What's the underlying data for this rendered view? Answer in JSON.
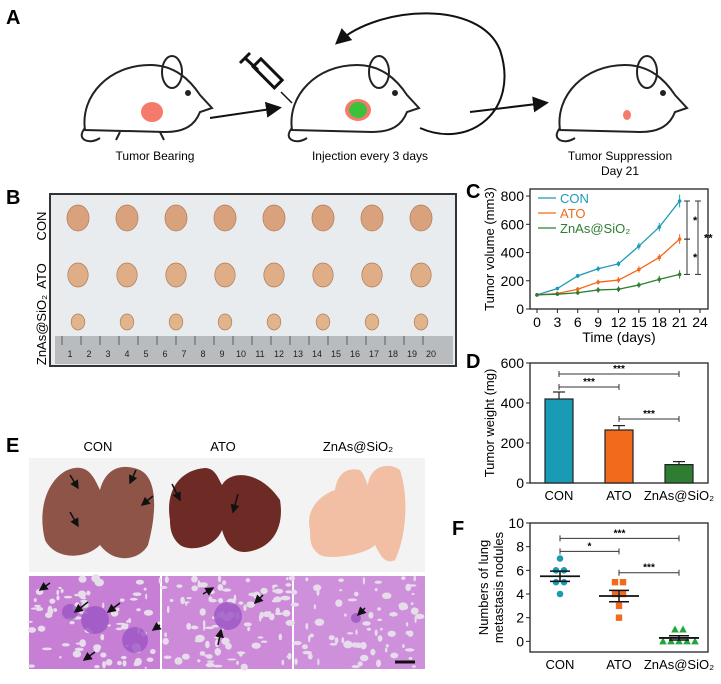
{
  "panels": {
    "A": {
      "label": "A",
      "steps": [
        "Tumor Bearing",
        "Injection every 3 days",
        "Tumor Suppression",
        "Day 21"
      ]
    },
    "B": {
      "label": "B",
      "rows": [
        "CON",
        "ATO",
        "ZnAs@SiO₂"
      ],
      "ruler_numbers": [
        "1",
        "2",
        "3",
        "4",
        "5",
        "6",
        "7",
        "8",
        "9",
        "10",
        "11",
        "12",
        "13",
        "14",
        "15",
        "16",
        "17",
        "18",
        "19",
        "20"
      ]
    },
    "E": {
      "label": "E",
      "columns": [
        "CON",
        "ATO",
        "ZnAs@SiO₂"
      ]
    }
  },
  "colors": {
    "CON": "#1a9bb5",
    "ATO": "#f26a1b",
    "ZnAs": "#2e7d32"
  },
  "chart_data": [
    {
      "id": "C",
      "label": "C",
      "type": "line",
      "xlabel": "Time (days)",
      "ylabel": "Tumor volume (mm3)",
      "x": [
        0,
        3,
        6,
        9,
        12,
        15,
        18,
        21
      ],
      "xticks": [
        "0",
        "3",
        "6",
        "9",
        "12",
        "15",
        "18",
        "21",
        "24"
      ],
      "yticks": [
        "0",
        "200",
        "400",
        "600",
        "800"
      ],
      "xlim": [
        0,
        24
      ],
      "ylim": [
        0,
        850
      ],
      "legend": "top-left",
      "series": [
        {
          "name": "CON",
          "values": [
            100,
            145,
            235,
            285,
            320,
            445,
            580,
            765
          ],
          "err": [
            12,
            12,
            15,
            18,
            18,
            25,
            30,
            45
          ]
        },
        {
          "name": "ATO",
          "values": [
            100,
            110,
            140,
            190,
            205,
            280,
            365,
            495
          ],
          "err": [
            12,
            12,
            15,
            18,
            20,
            22,
            25,
            35
          ]
        },
        {
          "name": "ZnAs@SiO₂",
          "values": [
            100,
            105,
            115,
            135,
            140,
            170,
            210,
            245
          ],
          "err": [
            12,
            12,
            15,
            20,
            20,
            20,
            25,
            30
          ]
        }
      ],
      "significance": [
        {
          "between": [
            "CON",
            "ATO"
          ],
          "text": "*"
        },
        {
          "between": [
            "ATO",
            "ZnAs@SiO₂"
          ],
          "text": "*"
        },
        {
          "between": [
            "CON",
            "ZnAs@SiO₂"
          ],
          "text": "**"
        }
      ]
    },
    {
      "id": "D",
      "label": "D",
      "type": "bar",
      "ylabel": "Tumor weight (mg)",
      "categories": [
        "CON",
        "ATO",
        "ZnAs@SiO₂"
      ],
      "values": [
        420,
        265,
        92
      ],
      "err": [
        35,
        22,
        15
      ],
      "yticks": [
        "0",
        "200",
        "400",
        "600"
      ],
      "ylim": [
        0,
        600
      ],
      "significance": [
        {
          "between": [
            0,
            1
          ],
          "text": "***",
          "level": 480
        },
        {
          "between": [
            0,
            2
          ],
          "text": "***",
          "level": 545
        },
        {
          "between": [
            1,
            2
          ],
          "text": "***",
          "level": 320
        }
      ]
    },
    {
      "id": "F",
      "label": "F",
      "type": "scatter",
      "ylabel": [
        "Numbers of lung",
        "metastasis nodules"
      ],
      "categories": [
        "CON",
        "ATO",
        "ZnAs@SiO₂"
      ],
      "points": [
        [
          7,
          6,
          6,
          5,
          5,
          4
        ],
        [
          5,
          5,
          4,
          4,
          3,
          2
        ],
        [
          1,
          1,
          0,
          0,
          0,
          0,
          0
        ]
      ],
      "means": [
        5.5,
        3.83,
        0.29
      ],
      "sem": [
        0.43,
        0.48,
        0.18
      ],
      "yticks": [
        "0",
        "2",
        "4",
        "6",
        "8",
        "10"
      ],
      "ylim": [
        -0.9,
        10
      ],
      "significance": [
        {
          "between": [
            0,
            1
          ],
          "text": "*",
          "level": 7.6
        },
        {
          "between": [
            0,
            2
          ],
          "text": "***",
          "level": 8.7
        },
        {
          "between": [
            1,
            2
          ],
          "text": "***",
          "level": 5.8
        }
      ]
    }
  ]
}
